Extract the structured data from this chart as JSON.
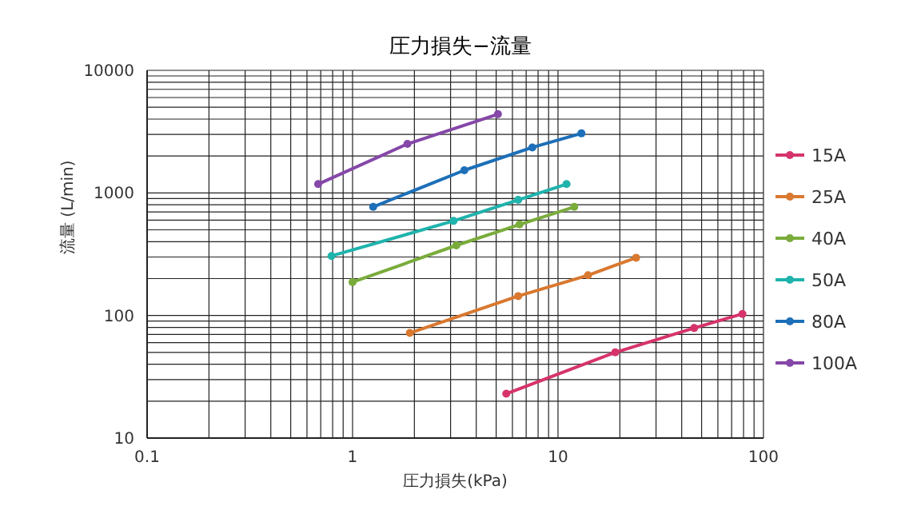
{
  "chart_data": {
    "type": "line",
    "title": "圧力損失−流量",
    "xlabel": "圧力損失(kPa)",
    "ylabel": "流量 (L/min)",
    "log": "xy",
    "grid": true,
    "legend": "right",
    "marker": "circle",
    "line_style": "solid",
    "xlim": [
      0.1,
      100
    ],
    "ylim": [
      10,
      10000
    ],
    "xticks": [
      0.1,
      {
        "value": 0.2,
        "label": null
      },
      {
        "value": 0.3,
        "label": null
      },
      {
        "value": 0.4,
        "label": null
      },
      {
        "value": 0.5,
        "label": null
      },
      {
        "value": 0.6,
        "label": null
      },
      {
        "value": 0.7,
        "label": null
      },
      {
        "value": 0.8,
        "label": null
      },
      {
        "value": 0.9,
        "label": null
      },
      1,
      {
        "value": 2,
        "label": null
      },
      {
        "value": 3,
        "label": null
      },
      {
        "value": 4,
        "label": null
      },
      {
        "value": 5,
        "label": null
      },
      {
        "value": 6,
        "label": null
      },
      {
        "value": 7,
        "label": null
      },
      {
        "value": 8,
        "label": null
      },
      {
        "value": 9,
        "label": null
      },
      10,
      {
        "value": 20,
        "label": null
      },
      {
        "value": 30,
        "label": null
      },
      {
        "value": 40,
        "label": null
      },
      {
        "value": 50,
        "label": null
      },
      {
        "value": 60,
        "label": null
      },
      {
        "value": 70,
        "label": null
      },
      {
        "value": 80,
        "label": null
      },
      {
        "value": 90,
        "label": null
      },
      100
    ],
    "yticks": [
      10,
      {
        "value": 20,
        "label": null
      },
      {
        "value": 30,
        "label": null
      },
      {
        "value": 40,
        "label": null
      },
      {
        "value": 50,
        "label": null
      },
      {
        "value": 60,
        "label": null
      },
      {
        "value": 70,
        "label": null
      },
      {
        "value": 80,
        "label": null
      },
      {
        "value": 90,
        "label": null
      },
      100,
      {
        "value": 200,
        "label": null
      },
      {
        "value": 300,
        "label": null
      },
      {
        "value": 400,
        "label": null
      },
      {
        "value": 500,
        "label": null
      },
      {
        "value": 600,
        "label": null
      },
      {
        "value": 700,
        "label": null
      },
      {
        "value": 800,
        "label": null
      },
      {
        "value": 900,
        "label": null
      },
      1000,
      {
        "value": 2000,
        "label": null
      },
      {
        "value": 3000,
        "label": null
      },
      {
        "value": 4000,
        "label": null
      },
      {
        "value": 5000,
        "label": null
      },
      {
        "value": 6000,
        "label": null
      },
      {
        "value": 7000,
        "label": null
      },
      {
        "value": 8000,
        "label": null
      },
      {
        "value": 9000,
        "label": null
      },
      10000
    ],
    "series": [
      {
        "name": "15A",
        "color": "#d6336c",
        "x": [
          5.6,
          19,
          46,
          79
        ],
        "values": [
          23,
          50,
          79,
          103
        ]
      },
      {
        "name": "25A",
        "color": "#d9782f",
        "x": [
          1.9,
          6.4,
          14,
          24
        ],
        "values": [
          72,
          144,
          213,
          296
        ]
      },
      {
        "name": "40A",
        "color": "#7aac3c",
        "x": [
          1,
          3.2,
          6.5,
          12
        ],
        "values": [
          187,
          373,
          553,
          769
        ]
      },
      {
        "name": "50A",
        "color": "#1fb3ac",
        "x": [
          0.79,
          3.1,
          6.4,
          11
        ],
        "values": [
          306,
          591,
          877,
          1180
        ]
      },
      {
        "name": "80A",
        "color": "#1c6fb8",
        "x": [
          1.26,
          3.5,
          7.5,
          13
        ],
        "values": [
          769,
          1530,
          2350,
          3060
        ]
      },
      {
        "name": "100A",
        "color": "#8547a8",
        "x": [
          0.68,
          1.85,
          5.1
        ],
        "values": [
          1180,
          2510,
          4390
        ]
      }
    ]
  }
}
